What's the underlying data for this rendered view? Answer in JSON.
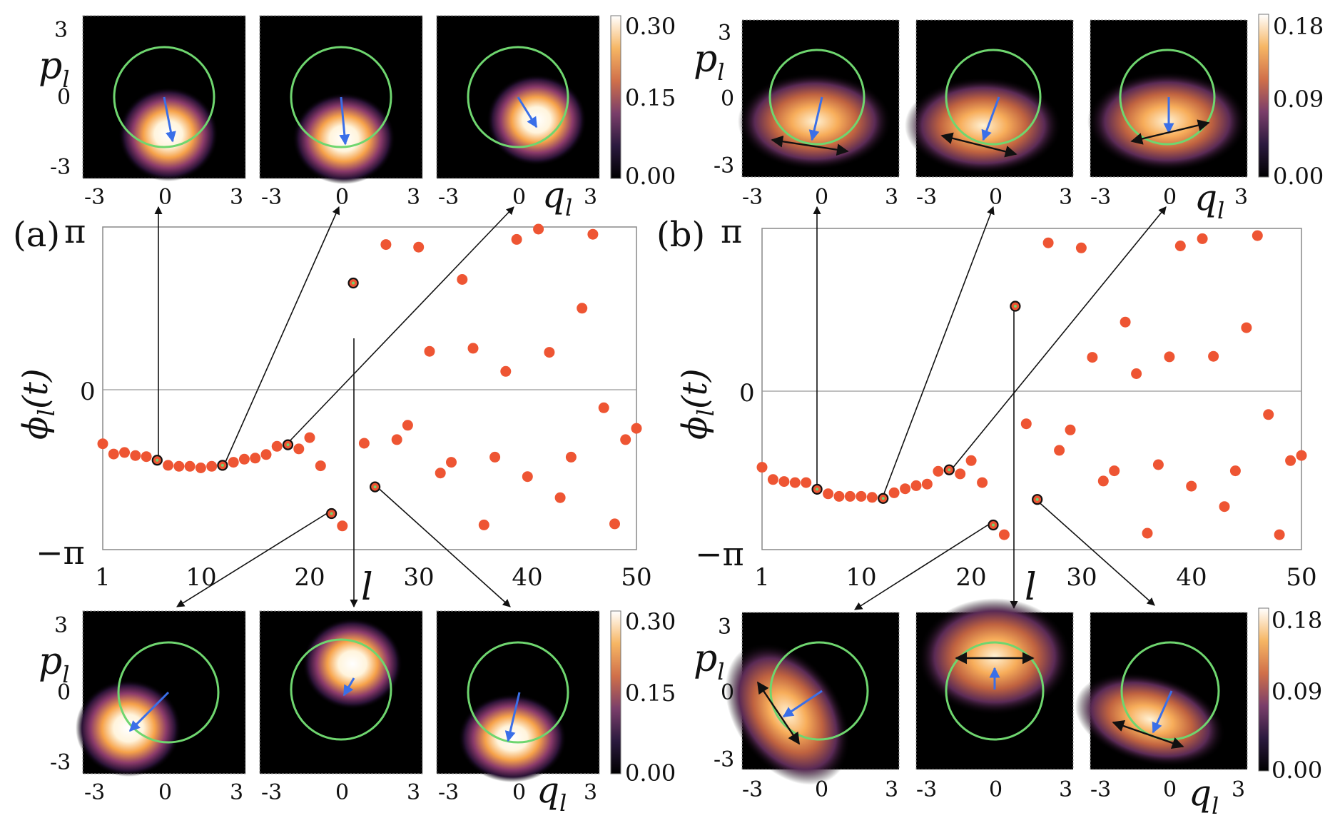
{
  "figure": {
    "panels": [
      {
        "id": "a",
        "label": "(a)",
        "ytick_labels": [
          "π",
          "0",
          "−π"
        ],
        "ylabel_main": "ϕ",
        "ylabel_sub": "l",
        "ylabel_arg": "(t)",
        "xlabel": "l",
        "xtick_labels": [
          "1",
          "10",
          "20",
          "30",
          "40",
          "50"
        ],
        "colorbar_top_ticks": [
          "0.30",
          "0.15",
          "0.00"
        ],
        "colorbar_bottom_ticks": [
          "0.30",
          "0.15",
          "0.00"
        ],
        "inset_x_ticks": [
          "-3",
          "0",
          "3"
        ],
        "inset_y_ticks": [
          "3",
          "0",
          "-3"
        ],
        "inset_xlabel": "q",
        "inset_ylabel": "p",
        "inset_sub": "l"
      },
      {
        "id": "b",
        "label": "(b)",
        "ytick_labels": [
          "π",
          "0",
          "−π"
        ],
        "ylabel_main": "ϕ",
        "ylabel_sub": "l",
        "ylabel_arg": "(t)",
        "xlabel": "l",
        "xtick_labels": [
          "1",
          "10",
          "20",
          "30",
          "40",
          "50"
        ],
        "colorbar_top_ticks": [
          "0.18",
          "0.09",
          "0.00"
        ],
        "colorbar_bottom_ticks": [
          "0.18",
          "0.09",
          "0.00"
        ],
        "inset_x_ticks": [
          "-3",
          "0",
          "3"
        ],
        "inset_y_ticks": [
          "3",
          "0",
          "-3"
        ],
        "inset_xlabel": "q",
        "inset_ylabel": "p",
        "inset_sub": "l"
      }
    ]
  },
  "chart_data": [
    {
      "type": "scatter",
      "panel": "a",
      "xlabel": "l",
      "ylabel": "ϕ_l(t)",
      "xlim": [
        1,
        50
      ],
      "ylim": [
        -3.1416,
        3.1416
      ],
      "x": [
        1,
        2,
        3,
        4,
        5,
        6,
        7,
        8,
        9,
        10,
        11,
        12,
        13,
        14,
        15,
        16,
        17,
        18,
        19,
        20,
        21,
        22,
        23,
        24,
        25,
        26,
        27,
        28,
        29,
        30,
        31,
        32,
        33,
        34,
        35,
        36,
        37,
        38,
        39,
        40,
        41,
        42,
        43,
        44,
        45,
        46,
        47,
        48,
        49,
        50
      ],
      "y": [
        -1.08,
        -1.28,
        -1.25,
        -1.31,
        -1.33,
        -1.4,
        -1.5,
        -1.52,
        -1.52,
        -1.55,
        -1.52,
        -1.5,
        -1.44,
        -1.38,
        -1.36,
        -1.29,
        -1.13,
        -1.1,
        -1.18,
        -0.96,
        -1.51,
        -2.44,
        -2.68,
        2.05,
        -1.07,
        -1.92,
        2.8,
        -1.0,
        -0.72,
        2.75,
        0.72,
        -1.65,
        -1.44,
        2.12,
        0.78,
        -2.66,
        -1.34,
        0.33,
        2.9,
        -1.72,
        3.1,
        0.7,
        -2.13,
        -1.34,
        1.56,
        3.0,
        -0.38,
        -2.64,
        -1.0,
        -0.78
      ],
      "highlighted_l": [
        6,
        12,
        18,
        22,
        24,
        26
      ],
      "inset_top_l": [
        6,
        12,
        18
      ],
      "inset_bottom_l": [
        22,
        24,
        26
      ],
      "colorbar_range": [
        0.0,
        0.3
      ]
    },
    {
      "type": "scatter",
      "panel": "b",
      "xlabel": "l",
      "ylabel": "ϕ_l(t)",
      "xlim": [
        1,
        50
      ],
      "ylim": [
        -3.1416,
        3.1416
      ],
      "x": [
        1,
        2,
        3,
        4,
        5,
        6,
        7,
        8,
        9,
        10,
        11,
        12,
        13,
        14,
        15,
        16,
        17,
        18,
        19,
        20,
        21,
        22,
        23,
        24,
        25,
        26,
        27,
        28,
        29,
        30,
        31,
        32,
        33,
        34,
        35,
        36,
        37,
        38,
        39,
        40,
        41,
        42,
        43,
        44,
        45,
        46,
        47,
        48,
        49,
        50
      ],
      "y": [
        -1.53,
        -1.77,
        -1.81,
        -1.83,
        -1.83,
        -1.96,
        -2.05,
        -2.1,
        -2.1,
        -2.1,
        -2.12,
        -2.14,
        -2.03,
        -1.95,
        -1.89,
        -1.86,
        -1.61,
        -1.58,
        -1.66,
        -1.4,
        -1.83,
        -2.66,
        -2.85,
        1.62,
        -0.68,
        -2.16,
        2.86,
        -1.2,
        -0.8,
        2.76,
        0.62,
        -1.8,
        -1.6,
        1.31,
        0.3,
        -2.82,
        -1.48,
        0.63,
        2.8,
        -1.9,
        2.94,
        0.64,
        -2.3,
        -1.6,
        1.2,
        3.0,
        -0.5,
        -2.85,
        -1.4,
        -1.3
      ],
      "highlighted_l": [
        6,
        12,
        18,
        22,
        24,
        26
      ],
      "inset_top_l": [
        6,
        12,
        18
      ],
      "inset_bottom_l": [
        22,
        24,
        26
      ],
      "colorbar_range": [
        0.0,
        0.18
      ]
    }
  ]
}
